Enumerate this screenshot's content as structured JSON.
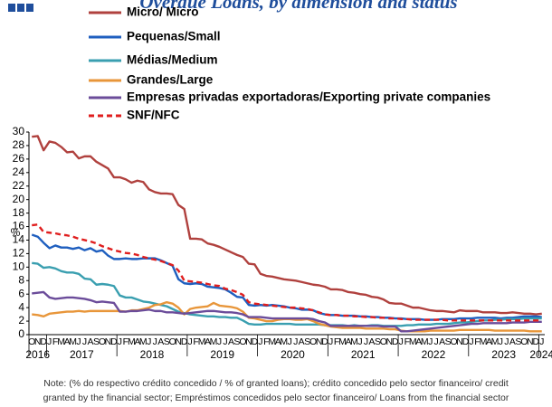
{
  "chart_data": {
    "type": "line",
    "title": "Overdue Loans, by dimension and status",
    "y_label": "%",
    "categories": [
      "O",
      "N",
      "D",
      "J",
      "F",
      "M",
      "A",
      "M",
      "J",
      "J",
      "A",
      "S",
      "O",
      "N",
      "D",
      "J",
      "F",
      "M",
      "A",
      "M",
      "J",
      "J",
      "A",
      "S",
      "O",
      "N",
      "D",
      "J",
      "F",
      "M",
      "A",
      "M",
      "J",
      "J",
      "A",
      "S",
      "O",
      "N",
      "D",
      "J",
      "F",
      "M",
      "A",
      "M",
      "J",
      "J",
      "A",
      "S",
      "O",
      "N",
      "D",
      "J",
      "F",
      "M",
      "A",
      "M",
      "J",
      "J",
      "A",
      "S",
      "O",
      "N",
      "D",
      "J",
      "F",
      "M",
      "A",
      "M",
      "J",
      "J",
      "A",
      "S",
      "O",
      "N",
      "D",
      "J",
      "F",
      "M",
      "A",
      "M",
      "J",
      "J",
      "A",
      "S",
      "O",
      "N",
      "D",
      "J"
    ],
    "years": [
      "2016",
      "2017",
      "2018",
      "2019",
      "2020",
      "2021",
      "2022",
      "2023",
      "2024"
    ],
    "ylim": [
      0,
      30
    ],
    "yticks": [
      0,
      2,
      4,
      6,
      8,
      10,
      12,
      14,
      16,
      18,
      20,
      22,
      24,
      26,
      28,
      30
    ],
    "series": [
      {
        "name": "Micro/ Micro",
        "color": "#b0413e",
        "dashed": false,
        "values": [
          29.3,
          29.4,
          27.3,
          28.6,
          28.4,
          27.8,
          27.0,
          27.1,
          26.1,
          26.4,
          26.4,
          25.6,
          25.1,
          24.6,
          23.3,
          23.3,
          23.0,
          22.5,
          22.8,
          22.6,
          21.5,
          21.1,
          20.9,
          20.9,
          20.8,
          19.2,
          18.6,
          14.2,
          14.2,
          14.1,
          13.5,
          13.3,
          13.0,
          12.6,
          12.2,
          11.8,
          11.5,
          10.5,
          10.4,
          9.0,
          8.7,
          8.6,
          8.4,
          8.2,
          8.1,
          8.0,
          7.8,
          7.6,
          7.4,
          7.3,
          7.1,
          6.7,
          6.7,
          6.6,
          6.3,
          6.2,
          6.0,
          5.9,
          5.6,
          5.5,
          5.2,
          4.7,
          4.6,
          4.6,
          4.3,
          4.0,
          4.0,
          3.8,
          3.6,
          3.5,
          3.5,
          3.4,
          3.3,
          3.6,
          3.5,
          3.5,
          3.5,
          3.3,
          3.3,
          3.3,
          3.2,
          3.2,
          3.3,
          3.2,
          3.1,
          3.1,
          3.0,
          3.1
        ]
      },
      {
        "name": "Pequenas/Small",
        "color": "#1f5fbf",
        "dashed": false,
        "values": [
          14.8,
          14.5,
          13.6,
          12.8,
          13.2,
          12.9,
          12.9,
          12.7,
          12.9,
          12.5,
          12.8,
          12.3,
          12.5,
          11.7,
          11.2,
          11.2,
          11.3,
          11.2,
          11.2,
          11.3,
          11.3,
          11.3,
          11.0,
          10.6,
          10.2,
          8.2,
          7.6,
          7.5,
          7.6,
          7.5,
          7.1,
          7.0,
          6.9,
          6.7,
          6.2,
          5.6,
          5.5,
          4.4,
          4.3,
          4.4,
          4.3,
          4.4,
          4.3,
          4.2,
          4.0,
          3.9,
          3.7,
          3.7,
          3.6,
          3.2,
          3.0,
          2.9,
          2.9,
          2.8,
          2.8,
          2.8,
          2.7,
          2.7,
          2.6,
          2.6,
          2.5,
          2.5,
          2.4,
          2.4,
          2.3,
          2.3,
          2.3,
          2.2,
          2.2,
          2.2,
          2.3,
          2.3,
          2.3,
          2.4,
          2.4,
          2.4,
          2.5,
          2.5,
          2.5,
          2.5,
          2.4,
          2.5,
          2.5,
          2.6,
          2.7,
          2.7,
          2.7,
          2.6
        ]
      },
      {
        "name": "Médias/Medium",
        "color": "#3a9fb0",
        "dashed": false,
        "values": [
          10.6,
          10.5,
          9.9,
          10.0,
          9.8,
          9.4,
          9.2,
          9.2,
          9.0,
          8.3,
          8.2,
          7.4,
          7.5,
          7.4,
          7.2,
          5.8,
          5.5,
          5.5,
          5.2,
          4.9,
          4.8,
          4.6,
          4.4,
          4.2,
          3.8,
          3.4,
          3.2,
          3.0,
          2.9,
          2.8,
          2.7,
          2.7,
          2.6,
          2.6,
          2.5,
          2.5,
          2.1,
          1.6,
          1.5,
          1.5,
          1.6,
          1.6,
          1.6,
          1.6,
          1.6,
          1.5,
          1.5,
          1.5,
          1.5,
          1.5,
          1.4,
          1.4,
          1.4,
          1.4,
          1.3,
          1.4,
          1.3,
          1.3,
          1.4,
          1.4,
          1.3,
          1.3,
          1.3,
          1.3,
          1.4,
          1.4,
          1.5,
          1.5,
          1.5,
          1.6,
          1.6,
          1.6,
          1.7,
          1.8,
          1.8,
          1.9,
          2.0,
          2.1,
          2.1,
          2.2,
          2.2,
          2.3,
          2.3,
          2.3,
          2.4,
          2.4,
          2.4,
          2.4
        ]
      },
      {
        "name": "Grandes/Large",
        "color": "#e8963a",
        "dashed": false,
        "values": [
          3.0,
          2.9,
          2.7,
          3.1,
          3.2,
          3.3,
          3.4,
          3.4,
          3.5,
          3.4,
          3.5,
          3.5,
          3.5,
          3.5,
          3.5,
          3.5,
          3.4,
          3.6,
          3.6,
          3.8,
          4.0,
          4.4,
          4.5,
          4.8,
          4.6,
          4.0,
          3.0,
          3.8,
          4.0,
          4.1,
          4.2,
          4.7,
          4.3,
          4.2,
          4.1,
          3.9,
          3.4,
          2.5,
          2.4,
          2.2,
          2.0,
          2.0,
          2.2,
          2.3,
          2.3,
          2.2,
          2.2,
          2.3,
          2.0,
          1.6,
          1.4,
          1.2,
          1.1,
          1.0,
          1.0,
          1.0,
          1.0,
          0.9,
          0.9,
          0.9,
          0.9,
          0.8,
          0.8,
          0.6,
          0.5,
          0.5,
          0.5,
          0.5,
          0.6,
          0.6,
          0.6,
          0.6,
          0.6,
          0.7,
          0.7,
          0.7,
          0.7,
          0.7,
          0.7,
          0.6,
          0.6,
          0.6,
          0.6,
          0.6,
          0.6,
          0.5,
          0.5,
          0.5
        ]
      },
      {
        "name": "Empresas privadas exportadoras/Exporting private companies",
        "color": "#6b4c9a",
        "dashed": false,
        "values": [
          6.1,
          6.2,
          6.3,
          5.5,
          5.3,
          5.4,
          5.5,
          5.5,
          5.4,
          5.3,
          5.1,
          4.8,
          4.9,
          4.8,
          4.7,
          3.4,
          3.4,
          3.5,
          3.5,
          3.6,
          3.7,
          3.5,
          3.5,
          3.3,
          3.3,
          3.2,
          3.1,
          3.2,
          3.3,
          3.4,
          3.5,
          3.5,
          3.4,
          3.3,
          3.3,
          3.2,
          3.0,
          2.6,
          2.6,
          2.6,
          2.5,
          2.4,
          2.4,
          2.4,
          2.4,
          2.4,
          2.4,
          2.4,
          2.3,
          2.0,
          1.8,
          1.3,
          1.3,
          1.3,
          1.3,
          1.3,
          1.3,
          1.3,
          1.3,
          1.3,
          1.2,
          1.2,
          1.2,
          0.5,
          0.5,
          0.6,
          0.7,
          0.8,
          0.9,
          1.0,
          1.1,
          1.2,
          1.3,
          1.4,
          1.5,
          1.6,
          1.6,
          1.7,
          1.7,
          1.7,
          1.7,
          1.7,
          1.8,
          1.8,
          1.8,
          1.9,
          1.9,
          1.9
        ]
      },
      {
        "name": "SNF/NFC",
        "color": "#e01e1e",
        "dashed": true,
        "values": [
          16.2,
          16.3,
          15.2,
          15.1,
          15.0,
          14.8,
          14.7,
          14.5,
          14.2,
          14.0,
          13.8,
          13.5,
          13.1,
          12.8,
          12.5,
          12.3,
          12.1,
          12.0,
          11.8,
          11.5,
          11.3,
          11.1,
          10.9,
          10.6,
          10.3,
          9.5,
          8.0,
          7.9,
          7.8,
          7.7,
          7.5,
          7.3,
          7.2,
          6.8,
          6.6,
          6.3,
          5.9,
          4.8,
          4.6,
          4.5,
          4.4,
          4.3,
          4.2,
          4.1,
          4.0,
          4.0,
          3.9,
          3.8,
          3.6,
          3.3,
          3.0,
          2.9,
          2.9,
          2.8,
          2.8,
          2.7,
          2.7,
          2.6,
          2.6,
          2.5,
          2.5,
          2.4,
          2.4,
          2.3,
          2.3,
          2.2,
          2.2,
          2.2,
          2.2,
          2.2,
          2.2,
          2.1,
          2.1,
          2.1,
          2.1,
          2.1,
          2.1,
          2.1,
          2.1,
          2.1,
          2.1,
          2.1,
          2.1,
          2.1,
          2.1,
          2.1,
          2.1,
          2.1
        ]
      }
    ],
    "note_lines": [
      "Note: (% do respectivo crédito concedido / % of granted loans); crédito concedido pelo sector financeiro/ credit",
      "granted by the financial sector; Empréstimos concedidos pelo sector financeiro/ Loans from the financial sector"
    ]
  }
}
